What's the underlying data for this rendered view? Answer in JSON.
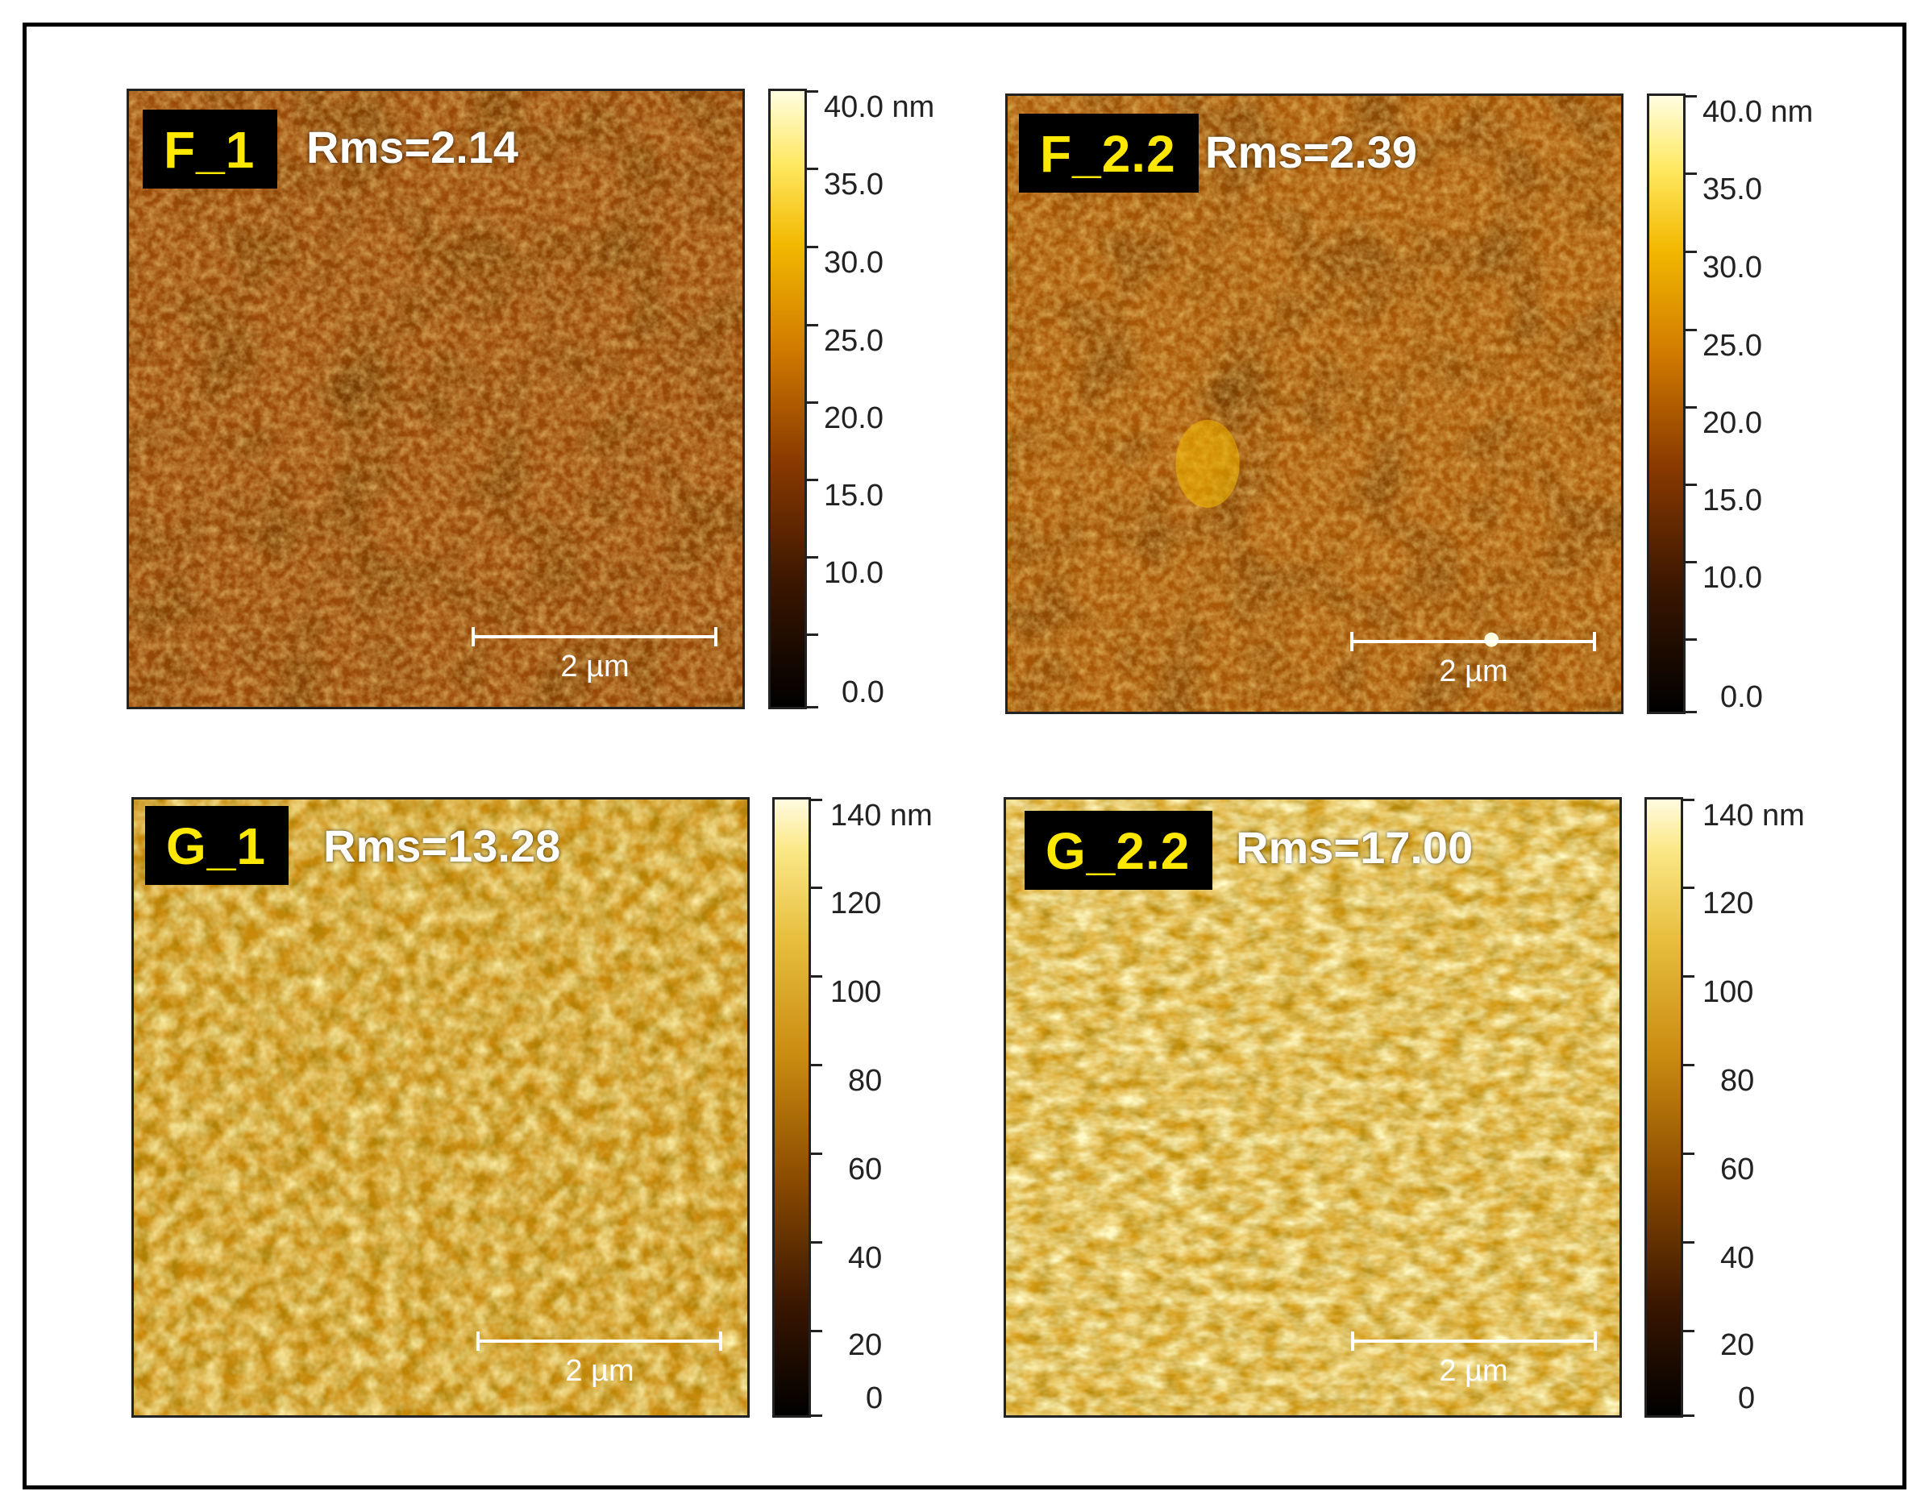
{
  "colors": {
    "tag_text": "#ffe800",
    "tag_bg": "#000000",
    "frame": "#000000"
  },
  "panels": [
    {
      "tag": "F_1",
      "rms": "Rms=2.14",
      "scale_label": "2 µm",
      "colorbar_ticks": [
        "40.0 nm",
        "35.0",
        "30.0",
        "25.0",
        "20.0",
        "15.0",
        "10.0",
        "",
        "0.0"
      ]
    },
    {
      "tag": "F_2.2",
      "rms": "Rms=2.39",
      "scale_label": "2 µm",
      "colorbar_ticks": [
        "40.0 nm",
        "35.0",
        "30.0",
        "25.0",
        "20.0",
        "15.0",
        "10.0",
        "",
        "0.0"
      ]
    },
    {
      "tag": "G_1",
      "rms": "Rms=13.28",
      "scale_label": "2 µm",
      "colorbar_ticks": [
        "140 nm",
        "120",
        "100",
        "80",
        "60",
        "40",
        "20",
        "0"
      ]
    },
    {
      "tag": "G_2.2",
      "rms": "Rms=17.00",
      "scale_label": "2 µm",
      "colorbar_ticks": [
        "140 nm",
        "120",
        "100",
        "80",
        "60",
        "40",
        "20",
        "0"
      ]
    }
  ]
}
